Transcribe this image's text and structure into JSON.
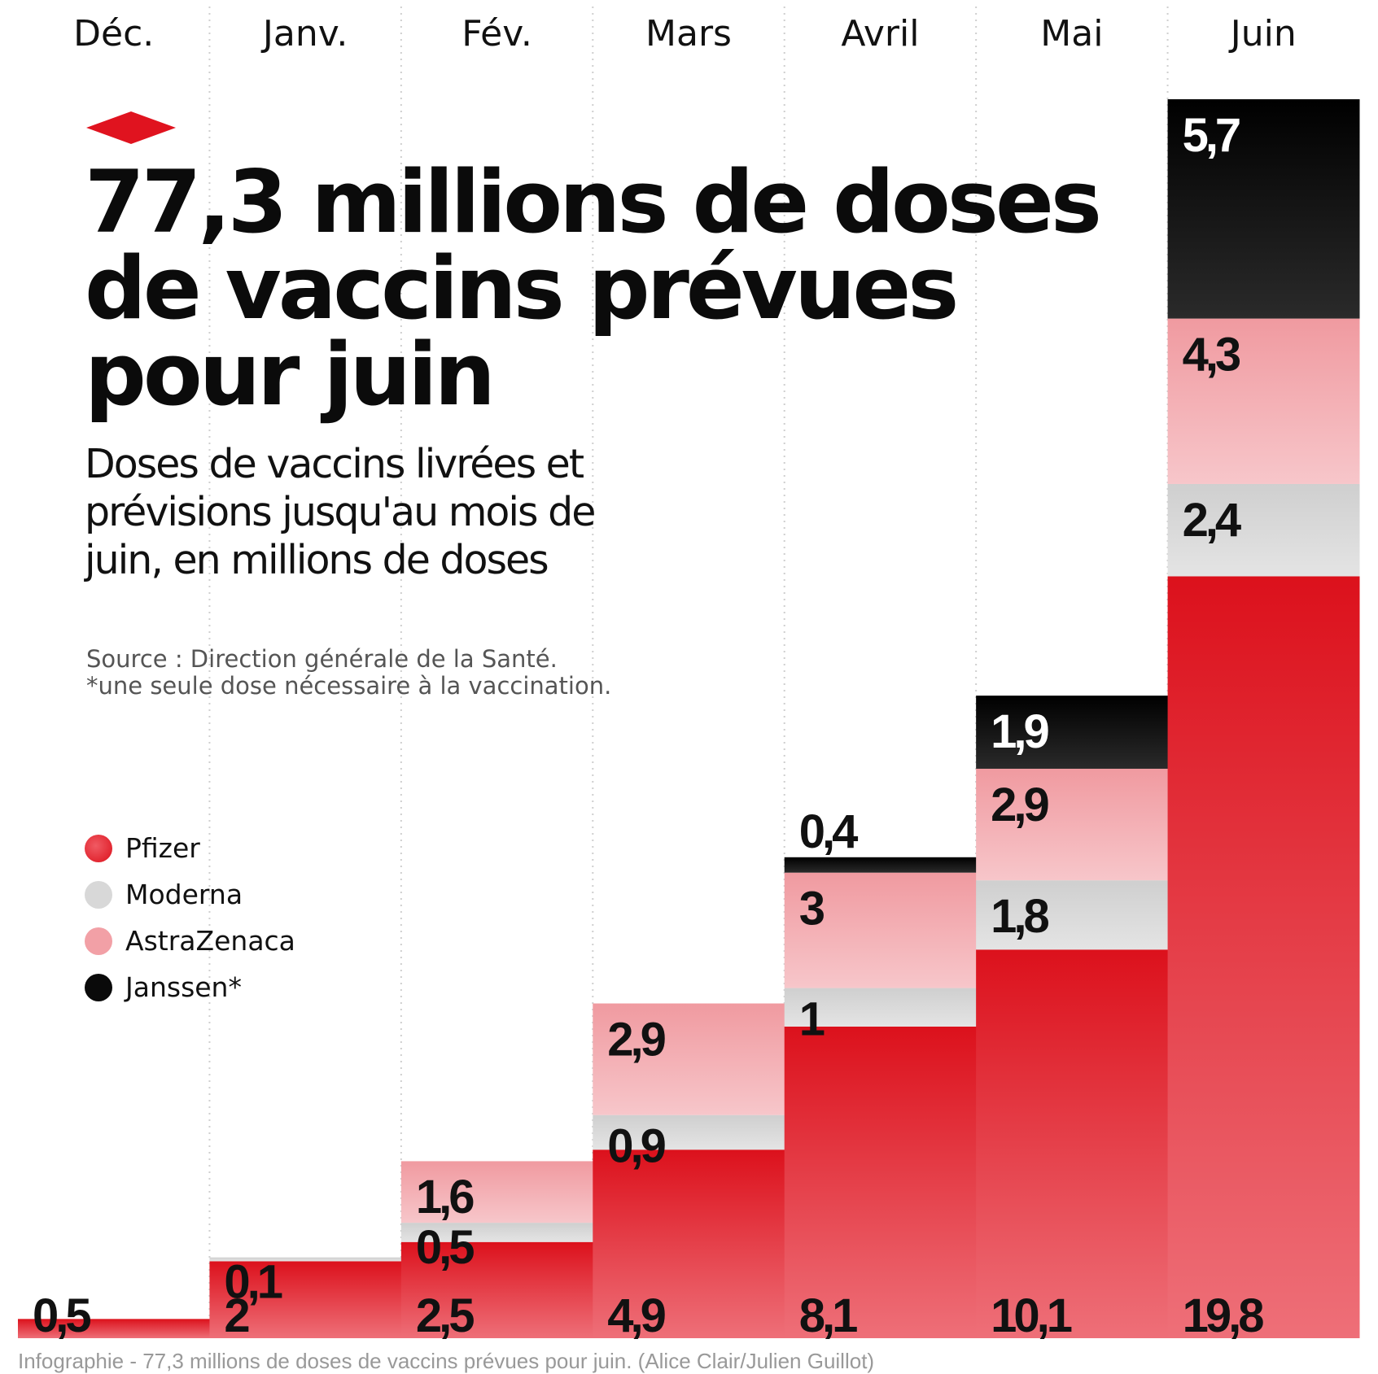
{
  "chart_data": {
    "type": "bar",
    "stacked": true,
    "title": "77,3 millions de doses de vaccins prévues pour juin",
    "subtitle": "Doses de vaccins livrées et prévisions jusqu'au mois de juin, en millions de doses",
    "source_lines": [
      "Source : Direction générale de la Santé.",
      "*une seule dose nécessaire à la vaccination."
    ],
    "caption": "Infographie - 77,3 millions de doses de vaccins prévues pour juin. (Alice Clair/Julien Guillot)",
    "categories": [
      "Déc.",
      "Janv.",
      "Fév.",
      "Mars",
      "Avril",
      "Mai",
      "Juin"
    ],
    "series": [
      {
        "name": "Pfizer",
        "color": "#e0131f",
        "values": [
          0.5,
          2,
          2.5,
          4.9,
          8.1,
          10.1,
          19.8
        ],
        "labels": [
          "0,5",
          "2",
          "2,5",
          "4,9",
          "8,1",
          "10,1",
          "19,8"
        ]
      },
      {
        "name": "Moderna",
        "color": "#d8d8d8",
        "values": [
          0,
          0.1,
          0.5,
          0.9,
          1,
          1.8,
          2.4
        ],
        "labels": [
          "",
          "0,1",
          "0,5",
          "0,9",
          "1",
          "1,8",
          "2,4"
        ]
      },
      {
        "name": "AstraZenaca",
        "color": "#f2a0a6",
        "values": [
          0,
          0,
          1.6,
          2.9,
          3,
          2.9,
          4.3
        ],
        "labels": [
          "",
          "",
          "1,6",
          "2,9",
          "3",
          "2,9",
          "4,3"
        ]
      },
      {
        "name": "Janssen*",
        "color": "#0a0a0a",
        "values": [
          0,
          0,
          0,
          0,
          0.4,
          1.9,
          5.7
        ],
        "labels": [
          "",
          "",
          "",
          "",
          "0,4",
          "1,9",
          "5,7"
        ]
      }
    ],
    "ylim": [
      0,
      32.2
    ],
    "grid": "vertical dotted separators",
    "legend_position": "left-middle"
  }
}
